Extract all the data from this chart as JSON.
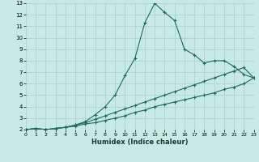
{
  "xlabel": "Humidex (Indice chaleur)",
  "bg_color": "#c8eae4",
  "grid_color": "#aed4ce",
  "line_color": "#1e6b5a",
  "xlim": [
    0,
    23
  ],
  "ylim": [
    2,
    13
  ],
  "xticks": [
    0,
    1,
    2,
    3,
    4,
    5,
    6,
    7,
    8,
    9,
    10,
    11,
    12,
    13,
    14,
    15,
    16,
    17,
    18,
    19,
    20,
    21,
    22,
    23
  ],
  "yticks": [
    2,
    3,
    4,
    5,
    6,
    7,
    8,
    9,
    10,
    11,
    12,
    13
  ],
  "line1_x": [
    0,
    1,
    2,
    3,
    4,
    5,
    6,
    7,
    8,
    9,
    10,
    11,
    12,
    13,
    14,
    15,
    16,
    17,
    18,
    19,
    20,
    21,
    22,
    23
  ],
  "line1_y": [
    2.0,
    2.1,
    2.0,
    2.1,
    2.2,
    2.3,
    2.5,
    2.6,
    2.8,
    3.0,
    3.2,
    3.5,
    3.7,
    4.0,
    4.2,
    4.4,
    4.6,
    4.8,
    5.0,
    5.2,
    5.5,
    5.7,
    6.0,
    6.5
  ],
  "line2_x": [
    0,
    1,
    2,
    3,
    4,
    5,
    6,
    7,
    8,
    9,
    10,
    11,
    12,
    13,
    14,
    15,
    16,
    17,
    18,
    19,
    20,
    21,
    22,
    23
  ],
  "line2_y": [
    2.0,
    2.1,
    2.0,
    2.1,
    2.2,
    2.4,
    2.6,
    2.9,
    3.2,
    3.5,
    3.8,
    4.1,
    4.4,
    4.7,
    5.0,
    5.3,
    5.6,
    5.9,
    6.2,
    6.5,
    6.8,
    7.1,
    7.4,
    6.5
  ],
  "line3_x": [
    0,
    1,
    2,
    3,
    4,
    5,
    6,
    7,
    8,
    9,
    10,
    11,
    12,
    13,
    14,
    15,
    16,
    17,
    18,
    19,
    20,
    21,
    22,
    23
  ],
  "line3_y": [
    2.0,
    2.1,
    2.0,
    2.1,
    2.2,
    2.4,
    2.7,
    3.3,
    4.0,
    5.0,
    6.7,
    8.2,
    11.3,
    13.0,
    12.2,
    11.5,
    9.0,
    8.5,
    7.8,
    8.0,
    8.0,
    7.5,
    6.8,
    6.5
  ]
}
